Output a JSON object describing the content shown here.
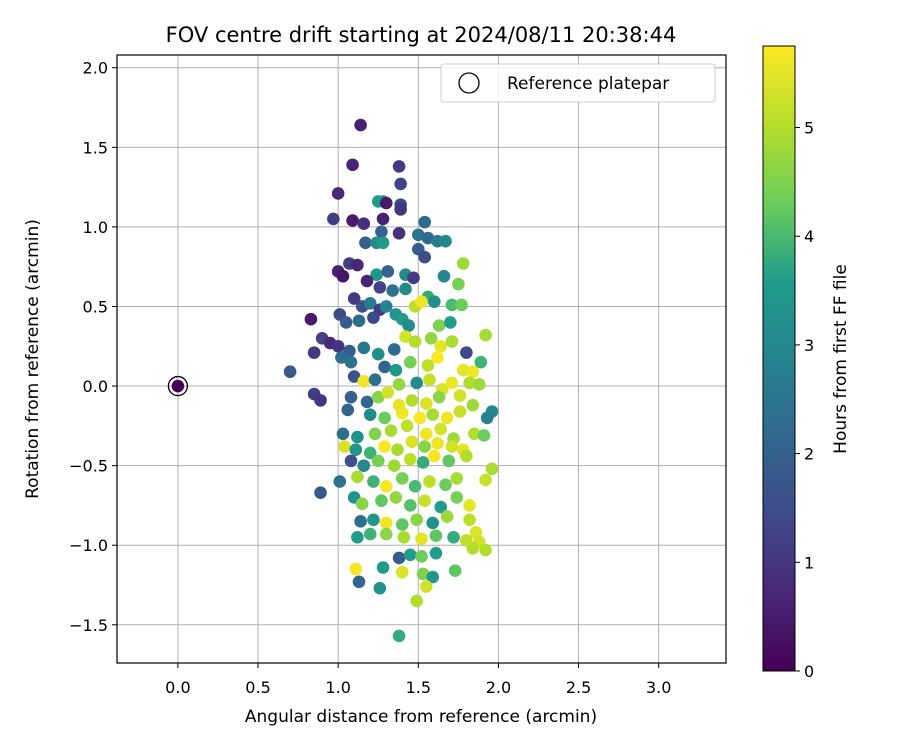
{
  "chart_data": {
    "type": "scatter",
    "title": "FOV centre drift starting at 2024/08/11 20:38:44",
    "xlabel": "Angular distance from reference (arcmin)",
    "ylabel": "Rotation from reference (arcmin)",
    "xlim": [
      -0.38,
      3.42
    ],
    "ylim": [
      -1.74,
      2.08
    ],
    "xticks": [
      "0.0",
      "0.5",
      "1.0",
      "1.5",
      "2.0",
      "2.5",
      "3.0"
    ],
    "yticks": [
      "−1.5",
      "−1.0",
      "−0.5",
      "0.0",
      "0.5",
      "1.0",
      "1.5",
      "2.0"
    ],
    "grid": true,
    "legend": {
      "placement": "top-right",
      "entries": [
        "Reference platepar"
      ]
    },
    "reference_point": {
      "x": 0.0,
      "y": 0.0,
      "hours": 0.0
    },
    "colorbar": {
      "label": "Hours from first FF file",
      "range": [
        0,
        5.75
      ],
      "ticks": [
        "0",
        "1",
        "2",
        "3",
        "4",
        "5"
      ],
      "colormap": [
        "#440154",
        "#482777",
        "#3f4a8a",
        "#31678e",
        "#26838f",
        "#1f9d8a",
        "#6cce5a",
        "#b6de2b",
        "#fee825"
      ]
    },
    "points": [
      [
        0.0,
        0.0,
        0.0
      ],
      [
        1.14,
        1.64,
        0.6
      ],
      [
        1.09,
        1.39,
        0.7
      ],
      [
        1.38,
        1.38,
        1.1
      ],
      [
        1.39,
        1.27,
        1.3
      ],
      [
        1.25,
        1.16,
        3.6
      ],
      [
        1.28,
        1.16,
        3.5
      ],
      [
        1.3,
        1.15,
        0.5
      ],
      [
        1.0,
        1.21,
        0.8
      ],
      [
        1.39,
        1.14,
        1.4
      ],
      [
        1.39,
        1.11,
        1.0
      ],
      [
        0.97,
        1.05,
        1.2
      ],
      [
        1.09,
        1.04,
        0.5
      ],
      [
        1.28,
        1.05,
        0.6
      ],
      [
        1.16,
        1.02,
        0.9
      ],
      [
        1.54,
        1.03,
        2.2
      ],
      [
        1.27,
        0.97,
        2.0
      ],
      [
        1.38,
        0.96,
        0.9
      ],
      [
        1.5,
        0.95,
        2.5
      ],
      [
        1.56,
        0.93,
        2.2
      ],
      [
        1.62,
        0.91,
        2.7
      ],
      [
        1.67,
        0.91,
        3.0
      ],
      [
        1.17,
        0.9,
        1.9
      ],
      [
        1.24,
        0.9,
        3.2
      ],
      [
        1.28,
        0.9,
        3.5
      ],
      [
        1.5,
        0.86,
        1.9
      ],
      [
        1.54,
        0.81,
        1.5
      ],
      [
        1.78,
        0.77,
        4.8
      ],
      [
        1.07,
        0.77,
        1.2
      ],
      [
        1.12,
        0.76,
        0.7
      ],
      [
        1.0,
        0.72,
        0.6
      ],
      [
        1.03,
        0.69,
        0.4
      ],
      [
        1.24,
        0.7,
        3.4
      ],
      [
        1.31,
        0.72,
        2.0
      ],
      [
        1.42,
        0.7,
        3.1
      ],
      [
        1.47,
        0.68,
        1.1
      ],
      [
        1.66,
        0.69,
        3.0
      ],
      [
        1.75,
        0.64,
        4.4
      ],
      [
        1.18,
        0.66,
        0.7
      ],
      [
        1.26,
        0.62,
        1.3
      ],
      [
        1.34,
        0.6,
        2.5
      ],
      [
        1.42,
        0.61,
        3.1
      ],
      [
        1.56,
        0.56,
        3.8
      ],
      [
        1.6,
        0.53,
        3.2
      ],
      [
        1.71,
        0.51,
        4.0
      ],
      [
        1.77,
        0.51,
        4.3
      ],
      [
        1.48,
        0.5,
        5.1
      ],
      [
        1.52,
        0.53,
        5.6
      ],
      [
        1.1,
        0.55,
        1.1
      ],
      [
        1.15,
        0.5,
        1.6
      ],
      [
        1.2,
        0.52,
        2.7
      ],
      [
        1.26,
        0.48,
        1.2
      ],
      [
        1.3,
        0.5,
        2.9
      ],
      [
        1.36,
        0.45,
        3.3
      ],
      [
        0.83,
        0.42,
        0.5
      ],
      [
        1.01,
        0.45,
        1.4
      ],
      [
        1.05,
        0.4,
        1.9
      ],
      [
        1.13,
        0.41,
        2.3
      ],
      [
        1.22,
        0.43,
        1.4
      ],
      [
        1.4,
        0.42,
        3.5
      ],
      [
        1.44,
        0.38,
        3.1
      ],
      [
        1.63,
        0.38,
        4.5
      ],
      [
        1.7,
        0.4,
        3.6
      ],
      [
        0.9,
        0.3,
        1.3
      ],
      [
        0.95,
        0.27,
        0.8
      ],
      [
        1.0,
        0.25,
        1.0
      ],
      [
        1.07,
        0.22,
        1.9
      ],
      [
        1.16,
        0.24,
        2.6
      ],
      [
        1.25,
        0.2,
        3.2
      ],
      [
        1.35,
        0.23,
        2.3
      ],
      [
        1.42,
        0.31,
        5.3
      ],
      [
        1.48,
        0.28,
        5.0
      ],
      [
        1.58,
        0.3,
        4.7
      ],
      [
        1.64,
        0.25,
        5.5
      ],
      [
        1.71,
        0.28,
        4.9
      ],
      [
        1.8,
        0.21,
        1.4
      ],
      [
        1.92,
        0.32,
        4.9
      ],
      [
        0.85,
        0.21,
        1.1
      ],
      [
        1.02,
        0.18,
        2.3
      ],
      [
        1.08,
        0.15,
        2.5
      ],
      [
        1.29,
        0.12,
        2.1
      ],
      [
        1.36,
        0.1,
        3.4
      ],
      [
        1.45,
        0.15,
        4.4
      ],
      [
        1.56,
        0.13,
        5.1
      ],
      [
        1.62,
        0.18,
        5.7
      ],
      [
        1.78,
        0.1,
        5.5
      ],
      [
        1.84,
        0.09,
        5.6
      ],
      [
        1.89,
        0.15,
        3.9
      ],
      [
        0.7,
        0.09,
        1.8
      ],
      [
        1.1,
        0.06,
        1.7
      ],
      [
        1.16,
        0.03,
        5.6
      ],
      [
        1.23,
        0.04,
        2.4
      ],
      [
        1.38,
        0.01,
        4.7
      ],
      [
        1.49,
        0.02,
        3.1
      ],
      [
        1.57,
        0.04,
        5.2
      ],
      [
        1.65,
        -0.02,
        5.4
      ],
      [
        1.71,
        0.02,
        5.6
      ],
      [
        1.82,
        0.02,
        5.0
      ],
      [
        1.88,
        0.01,
        4.8
      ],
      [
        0.85,
        -0.05,
        1.2
      ],
      [
        0.89,
        -0.09,
        1.0
      ],
      [
        1.08,
        -0.07,
        2.0
      ],
      [
        1.18,
        -0.1,
        2.2
      ],
      [
        1.25,
        -0.07,
        4.6
      ],
      [
        1.31,
        -0.04,
        5.3
      ],
      [
        1.38,
        -0.12,
        5.5
      ],
      [
        1.46,
        -0.09,
        5.0
      ],
      [
        1.55,
        -0.11,
        5.4
      ],
      [
        1.63,
        -0.07,
        4.6
      ],
      [
        1.76,
        -0.06,
        5.3
      ],
      [
        1.84,
        -0.12,
        4.8
      ],
      [
        1.06,
        -0.15,
        2.1
      ],
      [
        1.2,
        -0.18,
        3.1
      ],
      [
        1.29,
        -0.2,
        4.3
      ],
      [
        1.4,
        -0.17,
        5.6
      ],
      [
        1.51,
        -0.2,
        5.7
      ],
      [
        1.59,
        -0.18,
        4.9
      ],
      [
        1.68,
        -0.2,
        5.6
      ],
      [
        1.76,
        -0.16,
        5.2
      ],
      [
        1.96,
        -0.16,
        3.0
      ],
      [
        1.93,
        -0.2,
        2.8
      ],
      [
        1.03,
        -0.3,
        2.4
      ],
      [
        1.12,
        -0.32,
        3.3
      ],
      [
        1.23,
        -0.3,
        4.5
      ],
      [
        1.33,
        -0.28,
        4.9
      ],
      [
        1.43,
        -0.25,
        5.1
      ],
      [
        1.55,
        -0.3,
        5.6
      ],
      [
        1.64,
        -0.27,
        5.3
      ],
      [
        1.72,
        -0.33,
        4.8
      ],
      [
        1.85,
        -0.3,
        5.0
      ],
      [
        1.91,
        -0.31,
        4.3
      ],
      [
        1.04,
        -0.38,
        5.4
      ],
      [
        1.11,
        -0.4,
        3.4
      ],
      [
        1.2,
        -0.42,
        3.9
      ],
      [
        1.29,
        -0.38,
        5.7
      ],
      [
        1.37,
        -0.4,
        4.9
      ],
      [
        1.46,
        -0.35,
        5.4
      ],
      [
        1.54,
        -0.38,
        4.6
      ],
      [
        1.62,
        -0.36,
        5.6
      ],
      [
        1.71,
        -0.38,
        5.3
      ],
      [
        1.78,
        -0.4,
        5.5
      ],
      [
        1.08,
        -0.47,
        1.6
      ],
      [
        1.16,
        -0.5,
        3.0
      ],
      [
        1.25,
        -0.47,
        4.4
      ],
      [
        1.35,
        -0.5,
        4.8
      ],
      [
        1.45,
        -0.46,
        5.1
      ],
      [
        1.53,
        -0.48,
        3.8
      ],
      [
        1.6,
        -0.44,
        5.7
      ],
      [
        1.69,
        -0.47,
        4.2
      ],
      [
        1.8,
        -0.44,
        5.0
      ],
      [
        1.96,
        -0.52,
        4.9
      ],
      [
        1.01,
        -0.6,
        2.5
      ],
      [
        1.12,
        -0.57,
        4.9
      ],
      [
        1.22,
        -0.6,
        3.9
      ],
      [
        1.3,
        -0.63,
        5.7
      ],
      [
        1.4,
        -0.58,
        4.4
      ],
      [
        1.48,
        -0.63,
        4.0
      ],
      [
        1.57,
        -0.6,
        5.1
      ],
      [
        1.67,
        -0.62,
        4.3
      ],
      [
        1.74,
        -0.58,
        4.9
      ],
      [
        1.92,
        -0.59,
        5.2
      ],
      [
        0.89,
        -0.67,
        1.8
      ],
      [
        1.1,
        -0.7,
        3.3
      ],
      [
        1.15,
        -0.74,
        4.6
      ],
      [
        1.27,
        -0.72,
        4.2
      ],
      [
        1.36,
        -0.7,
        4.7
      ],
      [
        1.45,
        -0.75,
        4.1
      ],
      [
        1.54,
        -0.72,
        5.2
      ],
      [
        1.64,
        -0.76,
        3.6
      ],
      [
        1.74,
        -0.7,
        4.4
      ],
      [
        1.82,
        -0.75,
        5.5
      ],
      [
        1.14,
        -0.85,
        2.4
      ],
      [
        1.22,
        -0.84,
        3.4
      ],
      [
        1.3,
        -0.86,
        5.6
      ],
      [
        1.4,
        -0.87,
        4.2
      ],
      [
        1.49,
        -0.84,
        4.6
      ],
      [
        1.59,
        -0.86,
        3.3
      ],
      [
        1.68,
        -0.82,
        4.8
      ],
      [
        1.82,
        -0.84,
        5.1
      ],
      [
        1.86,
        -0.92,
        5.4
      ],
      [
        1.12,
        -0.95,
        3.6
      ],
      [
        1.2,
        -0.93,
        3.9
      ],
      [
        1.3,
        -0.93,
        4.6
      ],
      [
        1.41,
        -0.95,
        4.9
      ],
      [
        1.52,
        -0.96,
        5.5
      ],
      [
        1.61,
        -0.94,
        4.2
      ],
      [
        1.72,
        -0.95,
        3.8
      ],
      [
        1.8,
        -0.97,
        5.1
      ],
      [
        1.88,
        -0.98,
        5.3
      ],
      [
        1.38,
        -1.08,
        1.9
      ],
      [
        1.45,
        -1.06,
        3.6
      ],
      [
        1.52,
        -1.07,
        4.3
      ],
      [
        1.61,
        -1.05,
        3.6
      ],
      [
        1.84,
        -1.02,
        5.0
      ],
      [
        1.92,
        -1.03,
        5.0
      ],
      [
        1.11,
        -1.15,
        5.7
      ],
      [
        1.28,
        -1.14,
        3.5
      ],
      [
        1.4,
        -1.17,
        5.4
      ],
      [
        1.53,
        -1.18,
        4.5
      ],
      [
        1.59,
        -1.2,
        3.4
      ],
      [
        1.73,
        -1.16,
        4.2
      ],
      [
        1.13,
        -1.23,
        2.1
      ],
      [
        1.26,
        -1.27,
        3.3
      ],
      [
        1.55,
        -1.26,
        5.3
      ],
      [
        1.49,
        -1.35,
        5.0
      ],
      [
        1.38,
        -1.57,
        3.8
      ]
    ]
  }
}
